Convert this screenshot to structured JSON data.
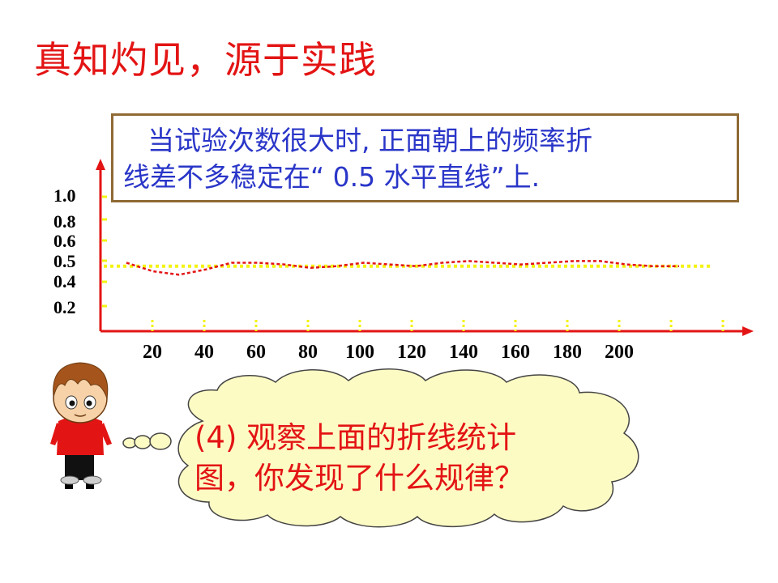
{
  "slide": {
    "title": "真知灼见，源于实践",
    "note_line1": "当试验次数很大时, 正面朝上的频率折",
    "note_line2": "线差不多稳定在“ 0.5 水平直线”上.",
    "bubble_line1": "(4) 观察上面的折线统计",
    "bubble_line2": "图，你发现了什么规律？"
  },
  "colors": {
    "title": "#e31414",
    "note_text": "#2a36c8",
    "note_border": "#8f6a34",
    "axis": "#e31414",
    "freq_line": "#e31414",
    "ref_line": "#f3f312",
    "cloud_fill": "#fdfbc4",
    "cloud_stroke": "#444444"
  },
  "chart_data": {
    "type": "line",
    "y_tick_labels": [
      "1.0",
      "0.8",
      "0.6",
      "0.5",
      "0.4",
      "0.2"
    ],
    "x_tick_labels": [
      "20",
      "40",
      "60",
      "80",
      "100",
      "120",
      "140",
      "160",
      "180",
      "200"
    ],
    "reference_line": {
      "y": 0.5,
      "style": "dotted"
    },
    "series": [
      {
        "style": "dashed",
        "points": [
          [
            20,
            0.52
          ],
          [
            30,
            0.47
          ],
          [
            40,
            0.45
          ],
          [
            50,
            0.48
          ],
          [
            60,
            0.52
          ],
          [
            70,
            0.52
          ],
          [
            80,
            0.51
          ],
          [
            90,
            0.49
          ],
          [
            100,
            0.5
          ],
          [
            110,
            0.52
          ],
          [
            120,
            0.51
          ],
          [
            130,
            0.5
          ],
          [
            140,
            0.52
          ],
          [
            150,
            0.53
          ],
          [
            160,
            0.52
          ],
          [
            170,
            0.51
          ],
          [
            180,
            0.52
          ],
          [
            190,
            0.53
          ],
          [
            200,
            0.53
          ],
          [
            210,
            0.51
          ],
          [
            220,
            0.5
          ],
          [
            230,
            0.5
          ]
        ]
      }
    ]
  }
}
